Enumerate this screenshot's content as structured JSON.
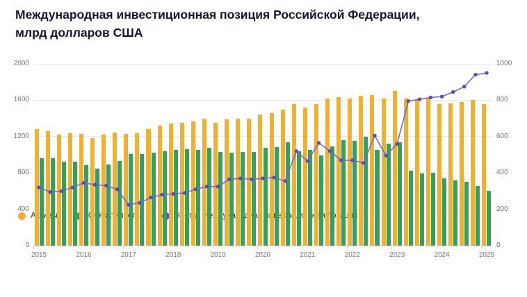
{
  "title": {
    "line1": "Международная инвестиционная позиция Российской Федерации,",
    "line2": "млрд долларов США"
  },
  "chart_data": {
    "type": "bar",
    "title": "Международная инвестиционная позиция Российской Федерации, млрд долларов США",
    "x_labels": [
      "2015",
      "2016",
      "2017",
      "2018",
      "2019",
      "2020",
      "2021",
      "2022",
      "2023",
      "2024",
      "2025"
    ],
    "x_label_every": 4,
    "grid": true,
    "legend_position": "bottom-left",
    "left_axis": {
      "min": 0,
      "max": 2000,
      "ticks": [
        0,
        400,
        800,
        1200,
        1600,
        2000
      ]
    },
    "right_axis": {
      "min": 0,
      "max": 1000,
      "ticks": [
        0,
        200,
        400,
        600,
        800,
        1000
      ]
    },
    "series": [
      {
        "name": "Активы",
        "type": "bar",
        "axis": "left",
        "color": "#F2B033",
        "values": [
          1280,
          1260,
          1225,
          1240,
          1230,
          1185,
          1220,
          1245,
          1230,
          1240,
          1285,
          1320,
          1340,
          1350,
          1365,
          1400,
          1355,
          1390,
          1400,
          1395,
          1445,
          1460,
          1495,
          1560,
          1520,
          1560,
          1615,
          1630,
          1620,
          1650,
          1660,
          1620,
          1700,
          1620,
          1600,
          1615,
          1560,
          1565,
          1580,
          1600,
          1555
        ]
      },
      {
        "name": "Обязательства",
        "type": "bar",
        "axis": "left",
        "color": "#33A15C",
        "values": [
          960,
          965,
          925,
          920,
          885,
          850,
          890,
          935,
          1005,
          1005,
          1020,
          1040,
          1055,
          1060,
          1055,
          1075,
          1030,
          1025,
          1030,
          1030,
          1075,
          1085,
          1140,
          1040,
          1055,
          995,
          1095,
          1160,
          1150,
          1195,
          1055,
          1125,
          1140,
          825,
          795,
          800,
          740,
          720,
          705,
          660,
          605
        ]
      },
      {
        "name": "Чистая международная инвестиционная позиция",
        "type": "line",
        "axis": "right",
        "color": "#7668CB",
        "dot_color": "#5B4DB8",
        "values": [
          320,
          295,
          300,
          320,
          345,
          335,
          330,
          310,
          225,
          235,
          265,
          280,
          285,
          290,
          310,
          325,
          325,
          365,
          370,
          365,
          370,
          375,
          355,
          520,
          465,
          565,
          520,
          470,
          470,
          455,
          605,
          495,
          560,
          795,
          805,
          815,
          820,
          845,
          875,
          940,
          950
        ]
      }
    ]
  }
}
